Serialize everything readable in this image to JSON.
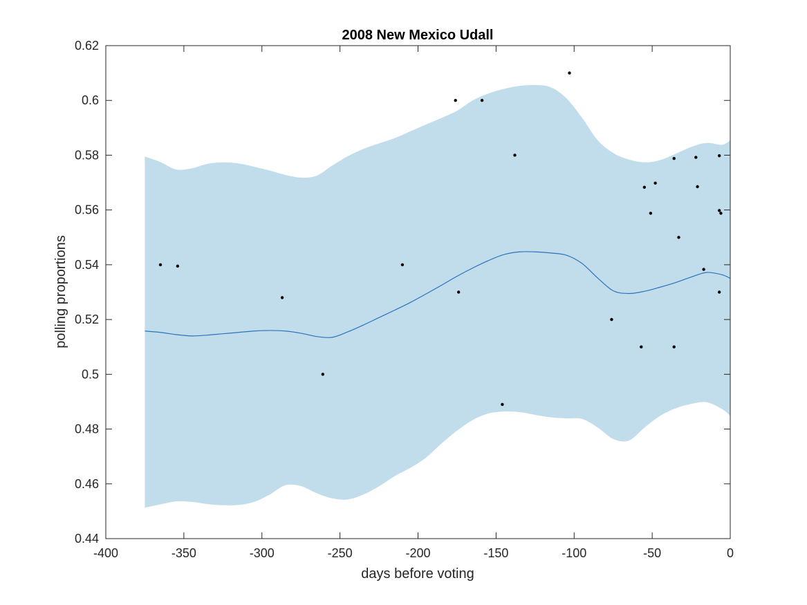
{
  "chart_data": {
    "type": "line",
    "title": "2008 New Mexico Udall",
    "xlabel": "days before voting",
    "ylabel": "polling proportions",
    "xlim": [
      -400,
      0
    ],
    "ylim": [
      0.44,
      0.62
    ],
    "xticks": [
      -400,
      -350,
      -300,
      -250,
      -200,
      -150,
      -100,
      -50,
      0
    ],
    "yticks": [
      0.44,
      0.46,
      0.48,
      0.5,
      0.52,
      0.54,
      0.56,
      0.58,
      0.6,
      0.62
    ],
    "xtick_labels": [
      "-400",
      "-350",
      "-300",
      "-250",
      "-200",
      "-150",
      "-100",
      "-50",
      "0"
    ],
    "ytick_labels": [
      "0.44",
      "0.46",
      "0.48",
      "0.5",
      "0.52",
      "0.54",
      "0.56",
      "0.58",
      "0.6",
      "0.62"
    ],
    "grid": false,
    "colors": {
      "band": "#c1dceb",
      "line": "#2a73bf",
      "points": "#000000",
      "axes": "#262626"
    },
    "band": {
      "x": [
        -375,
        -365,
        -355,
        -345,
        -335,
        -325,
        -315,
        -305,
        -295,
        -285,
        -275,
        -265,
        -255,
        -245,
        -235,
        -225,
        -215,
        -205,
        -195,
        -185,
        -175,
        -165,
        -155,
        -145,
        -135,
        -125,
        -115,
        -105,
        -95,
        -85,
        -75,
        -65,
        -55,
        -45,
        -35,
        -25,
        -15,
        -5,
        0
      ],
      "upper": [
        0.5795,
        0.5775,
        0.5748,
        0.5752,
        0.5768,
        0.5774,
        0.577,
        0.5758,
        0.5744,
        0.5728,
        0.5718,
        0.5725,
        0.5762,
        0.5796,
        0.5823,
        0.5843,
        0.5862,
        0.5887,
        0.5912,
        0.5936,
        0.5962,
        0.6,
        0.6025,
        0.6042,
        0.6053,
        0.6056,
        0.6048,
        0.6008,
        0.5937,
        0.5855,
        0.5808,
        0.5784,
        0.5774,
        0.5782,
        0.5805,
        0.583,
        0.5845,
        0.5838,
        0.5855
      ],
      "lower": [
        0.4513,
        0.4525,
        0.4536,
        0.4534,
        0.4526,
        0.4522,
        0.4523,
        0.4534,
        0.4561,
        0.4595,
        0.4592,
        0.4566,
        0.4547,
        0.4543,
        0.4561,
        0.4591,
        0.4628,
        0.4658,
        0.4695,
        0.4747,
        0.4794,
        0.4833,
        0.4857,
        0.4864,
        0.4862,
        0.4852,
        0.4843,
        0.4839,
        0.4837,
        0.4806,
        0.4764,
        0.4758,
        0.4805,
        0.4848,
        0.4876,
        0.4892,
        0.4898,
        0.4872,
        0.4848
      ]
    },
    "series": [
      {
        "x": [
          -375,
          -365,
          -355,
          -345,
          -335,
          -325,
          -315,
          -305,
          -295,
          -285,
          -275,
          -265,
          -255,
          -245,
          -235,
          -225,
          -215,
          -205,
          -195,
          -185,
          -175,
          -165,
          -155,
          -145,
          -135,
          -125,
          -115,
          -105,
          -95,
          -85,
          -75,
          -65,
          -55,
          -45,
          -35,
          -25,
          -15,
          -5,
          0
        ],
        "values": [
          0.5158,
          0.5153,
          0.5145,
          0.514,
          0.5143,
          0.5148,
          0.5153,
          0.5158,
          0.516,
          0.5158,
          0.515,
          0.5138,
          0.5135,
          0.5155,
          0.518,
          0.5207,
          0.5234,
          0.5262,
          0.5293,
          0.5325,
          0.5358,
          0.5388,
          0.5415,
          0.5437,
          0.5447,
          0.5447,
          0.5443,
          0.5435,
          0.5405,
          0.5352,
          0.5305,
          0.5295,
          0.5303,
          0.5318,
          0.5335,
          0.5355,
          0.5372,
          0.5363,
          0.535
        ]
      }
    ],
    "points": {
      "x": [
        -365,
        -354,
        -287,
        -261,
        -210,
        -176,
        -174,
        -159,
        -146,
        -138,
        -103,
        -76,
        -57,
        -55,
        -51,
        -48,
        -36,
        -36,
        -33,
        -22,
        -21,
        -17,
        -7,
        -7,
        -7,
        -6
      ],
      "y": [
        0.54,
        0.5395,
        0.528,
        0.5,
        0.54,
        0.6,
        0.53,
        0.6,
        0.489,
        0.58,
        0.61,
        0.52,
        0.51,
        0.5683,
        0.5588,
        0.5698,
        0.51,
        0.5788,
        0.55,
        0.5792,
        0.5685,
        0.5383,
        0.53,
        0.5798,
        0.5598,
        0.5588
      ]
    }
  }
}
